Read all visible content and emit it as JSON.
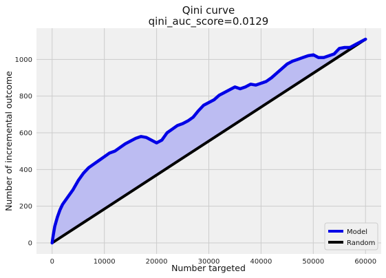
{
  "chart_data": {
    "type": "line",
    "title": "Qini curve",
    "subtitle": "qini_auc_score=0.0129",
    "xlabel": "Number targeted",
    "ylabel": "Number of incremental outcome",
    "xlim": [
      -3000,
      63000
    ],
    "ylim": [
      -60,
      1170
    ],
    "xticks": [
      0,
      10000,
      20000,
      30000,
      40000,
      50000,
      60000
    ],
    "yticks": [
      0,
      200,
      400,
      600,
      800,
      1000
    ],
    "grid": true,
    "legend_position": "bottom-right",
    "colors": {
      "plot_bg": "#f0f0f0",
      "grid": "#cccccc",
      "fill": "#bcbcf2"
    },
    "series": [
      {
        "name": "Model",
        "color": "#0000e6",
        "x": [
          0,
          200,
          500,
          1000,
          1500,
          2000,
          3000,
          4000,
          5000,
          6000,
          7000,
          8000,
          9000,
          10000,
          11000,
          12000,
          13000,
          14000,
          15000,
          16000,
          17000,
          18000,
          19000,
          20000,
          21000,
          22000,
          23000,
          24000,
          25000,
          26000,
          27000,
          28000,
          29000,
          30000,
          31000,
          32000,
          33000,
          34000,
          35000,
          36000,
          37000,
          38000,
          39000,
          40000,
          41000,
          42000,
          43000,
          44000,
          45000,
          46000,
          47000,
          48000,
          49000,
          50000,
          51000,
          52000,
          53000,
          54000,
          55000,
          56000,
          57000,
          58000,
          59000,
          60000
        ],
        "y": [
          0,
          40,
          90,
          140,
          180,
          210,
          250,
          290,
          340,
          380,
          410,
          430,
          450,
          470,
          490,
          500,
          520,
          540,
          555,
          570,
          580,
          575,
          560,
          545,
          560,
          600,
          620,
          640,
          650,
          665,
          685,
          720,
          750,
          765,
          780,
          805,
          820,
          835,
          850,
          840,
          850,
          865,
          860,
          870,
          880,
          900,
          925,
          950,
          975,
          990,
          1000,
          1010,
          1020,
          1025,
          1010,
          1010,
          1020,
          1030,
          1060,
          1065,
          1065,
          1080,
          1095,
          1110
        ]
      },
      {
        "name": "Random",
        "color": "#000000",
        "x": [
          0,
          60000
        ],
        "y": [
          0,
          1110
        ]
      }
    ]
  }
}
